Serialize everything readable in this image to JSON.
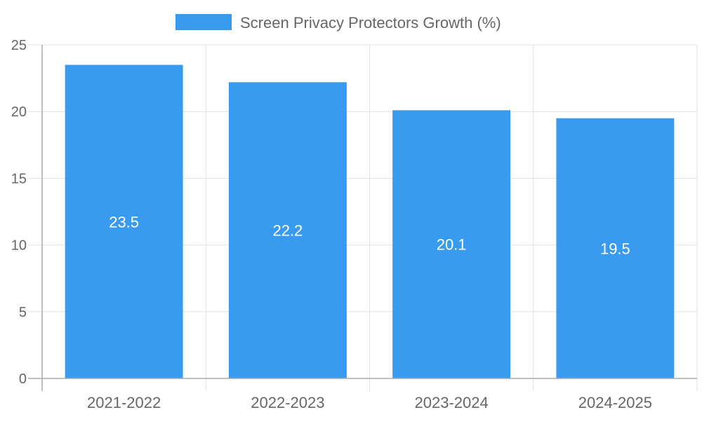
{
  "chart_data": {
    "type": "bar",
    "title": "",
    "xlabel": "",
    "ylabel": "",
    "categories": [
      "2021-2022",
      "2022-2023",
      "2023-2024",
      "2024-2025"
    ],
    "series": [
      {
        "name": "Screen Privacy Protectors Growth (%)",
        "values": [
          23.5,
          22.2,
          20.1,
          19.5
        ],
        "color": "#399BF0"
      }
    ],
    "data_labels": [
      "23.5",
      "22.2",
      "20.1",
      "19.5"
    ],
    "ylim": [
      0,
      25
    ],
    "yticks": [
      "0",
      "5",
      "10",
      "15",
      "20",
      "25"
    ],
    "grid": true,
    "legend_position": "top-center"
  }
}
